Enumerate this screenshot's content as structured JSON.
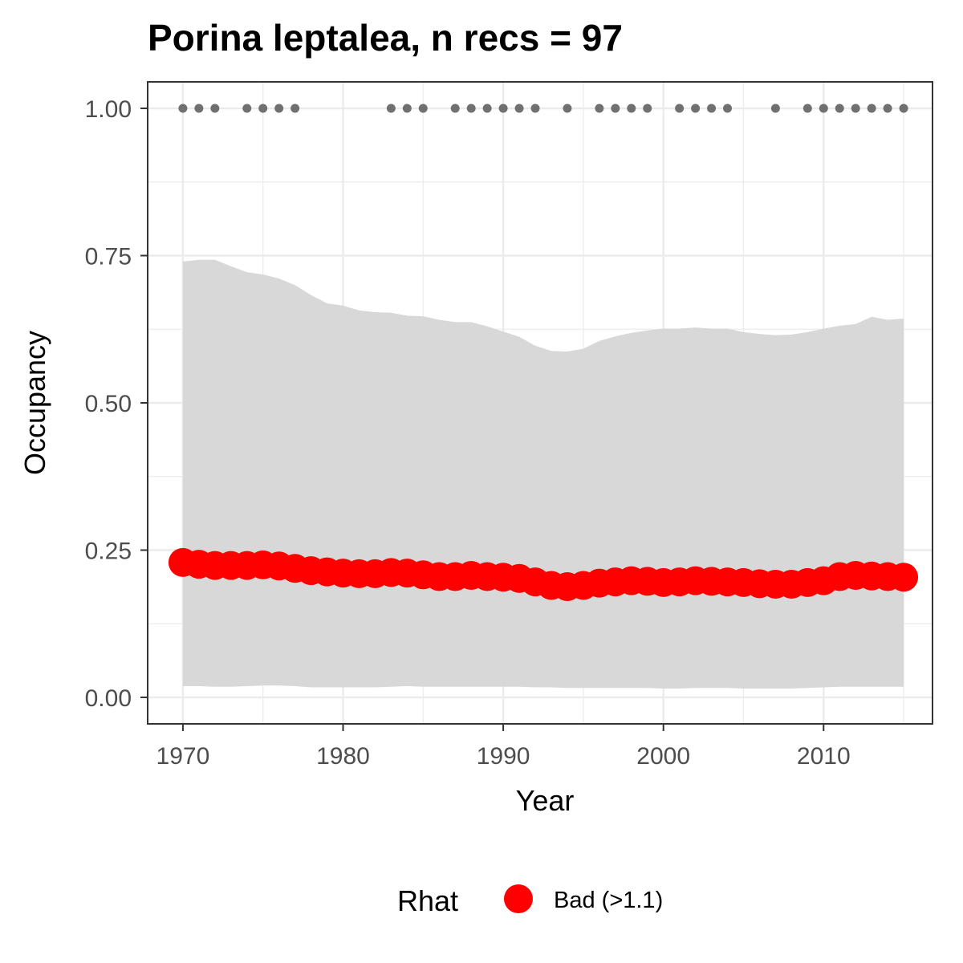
{
  "chart_data": {
    "type": "line",
    "title": "Porina leptalea, n recs = 97",
    "xlabel": "Year",
    "ylabel": "Occupancy",
    "xlim": [
      1967.8,
      2016.8
    ],
    "ylim": [
      -0.045,
      1.045
    ],
    "x_ticks": [
      1970,
      1980,
      1990,
      2000,
      2010
    ],
    "x_tick_labels": [
      "1970",
      "1980",
      "1990",
      "2000",
      "2010"
    ],
    "y_ticks": [
      0,
      0.25,
      0.5,
      0.75,
      1
    ],
    "y_tick_labels": [
      "0.00",
      "0.25",
      "0.50",
      "0.75",
      "1.00"
    ],
    "grid": true,
    "legend": {
      "title": "Rhat",
      "position": "bottom",
      "entries": [
        {
          "label": "Bad (>1.1)",
          "color": "#ff0000"
        }
      ]
    },
    "x": [
      1970,
      1971,
      1972,
      1973,
      1974,
      1975,
      1976,
      1977,
      1978,
      1979,
      1980,
      1981,
      1982,
      1983,
      1984,
      1985,
      1986,
      1987,
      1988,
      1989,
      1990,
      1991,
      1992,
      1993,
      1994,
      1995,
      1996,
      1997,
      1998,
      1999,
      2000,
      2001,
      2002,
      2003,
      2004,
      2005,
      2006,
      2007,
      2008,
      2009,
      2010,
      2011,
      2012,
      2013,
      2014,
      2015
    ],
    "series": [
      {
        "role": "mean",
        "color": "#ff0000",
        "values": [
          0.229,
          0.226,
          0.224,
          0.224,
          0.224,
          0.225,
          0.223,
          0.219,
          0.215,
          0.213,
          0.211,
          0.21,
          0.21,
          0.212,
          0.211,
          0.208,
          0.205,
          0.205,
          0.207,
          0.205,
          0.204,
          0.202,
          0.196,
          0.19,
          0.188,
          0.19,
          0.194,
          0.196,
          0.198,
          0.197,
          0.195,
          0.196,
          0.198,
          0.197,
          0.196,
          0.195,
          0.193,
          0.192,
          0.192,
          0.195,
          0.198,
          0.205,
          0.207,
          0.206,
          0.205,
          0.204
        ]
      },
      {
        "role": "upper",
        "color": "#d6d6d6",
        "values": [
          0.74,
          0.743,
          0.743,
          0.732,
          0.722,
          0.718,
          0.711,
          0.7,
          0.683,
          0.669,
          0.665,
          0.657,
          0.654,
          0.653,
          0.648,
          0.647,
          0.641,
          0.637,
          0.637,
          0.63,
          0.621,
          0.612,
          0.597,
          0.588,
          0.587,
          0.592,
          0.605,
          0.613,
          0.619,
          0.623,
          0.626,
          0.626,
          0.628,
          0.626,
          0.626,
          0.62,
          0.617,
          0.615,
          0.616,
          0.62,
          0.626,
          0.631,
          0.634,
          0.646,
          0.641,
          0.643
        ]
      },
      {
        "role": "lower",
        "color": "#d6d6d6",
        "values": [
          0.019,
          0.019,
          0.018,
          0.018,
          0.019,
          0.02,
          0.02,
          0.019,
          0.017,
          0.017,
          0.017,
          0.017,
          0.017,
          0.018,
          0.019,
          0.018,
          0.018,
          0.018,
          0.018,
          0.018,
          0.018,
          0.018,
          0.017,
          0.017,
          0.016,
          0.016,
          0.016,
          0.016,
          0.016,
          0.016,
          0.015,
          0.015,
          0.016,
          0.016,
          0.016,
          0.015,
          0.015,
          0.015,
          0.015,
          0.016,
          0.017,
          0.018,
          0.018,
          0.018,
          0.018,
          0.018
        ]
      },
      {
        "role": "records",
        "color": "#707070",
        "x": [
          1970,
          1971,
          1972,
          1974,
          1975,
          1976,
          1977,
          1983,
          1984,
          1985,
          1987,
          1988,
          1989,
          1990,
          1991,
          1992,
          1994,
          1996,
          1997,
          1998,
          1999,
          2001,
          2002,
          2003,
          2004,
          2007,
          2009,
          2010,
          2011,
          2012,
          2013,
          2014,
          2015
        ],
        "values": [
          1,
          1,
          1,
          1,
          1,
          1,
          1,
          1,
          1,
          1,
          1,
          1,
          1,
          1,
          1,
          1,
          1,
          1,
          1,
          1,
          1,
          1,
          1,
          1,
          1,
          1,
          1,
          1,
          1,
          1,
          1,
          1,
          1
        ]
      }
    ]
  }
}
